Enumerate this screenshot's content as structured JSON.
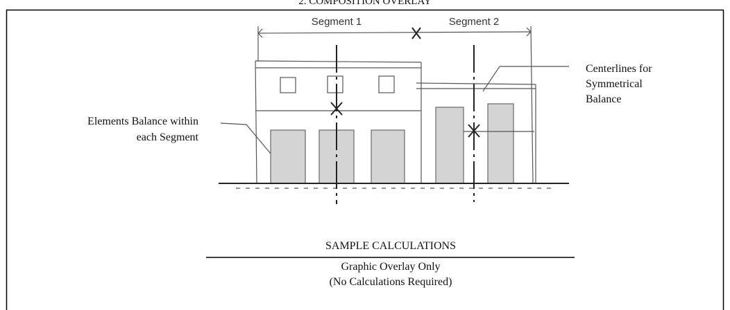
{
  "title": "2. COMPOSITION OVERLAY",
  "segments": [
    "Segment 1",
    "Segment 2"
  ],
  "callouts": {
    "centerlines": [
      "Centerlines for",
      "Symmetrical",
      "Balance"
    ],
    "elements": [
      "Elements Balance within",
      "each Segment"
    ]
  },
  "footer": {
    "heading": "SAMPLE CALCULATIONS",
    "lines": [
      "Graphic Overlay Only",
      "(No Calculations Required)"
    ]
  }
}
